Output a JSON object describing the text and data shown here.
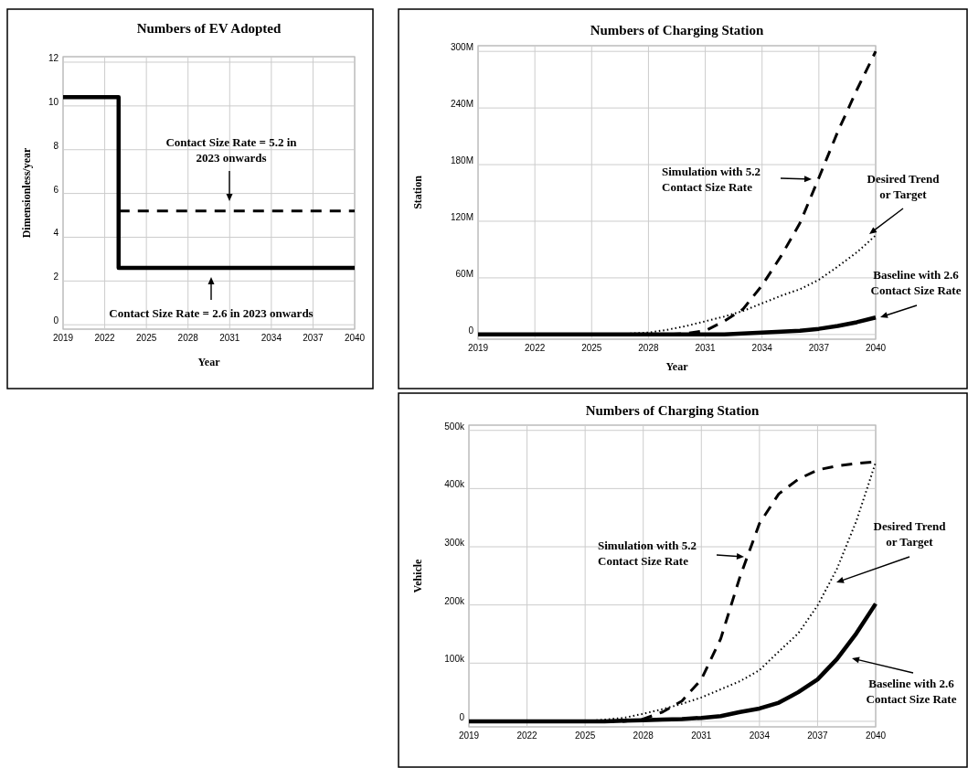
{
  "chart_data": [
    {
      "type": "line",
      "title": "Numbers of EV Adopted",
      "xlabel": "Year",
      "ylabel": "Dimensionless/year",
      "xlim": [
        2019,
        2040
      ],
      "ylim": [
        -0.2,
        12.25
      ],
      "xticks": [
        2019,
        2022,
        2025,
        2028,
        2031,
        2034,
        2037,
        2040
      ],
      "yticks": [
        0,
        2,
        4,
        6,
        8,
        10,
        12
      ],
      "grid": true,
      "series": [
        {
          "color": "#000000",
          "line_style": "solid",
          "x": [
            2019,
            2023,
            2023,
            2040
          ],
          "values": [
            10.4,
            10.4,
            2.6,
            2.6
          ]
        },
        {
          "color": "#000000",
          "line_style": "dashed",
          "x": [
            2023,
            2040
          ],
          "values": [
            5.2,
            5.2
          ]
        }
      ],
      "annotations": [
        "Contact Size Rate = 5.2 in\n2023 onwards",
        "Contact Size Rate = 2.6 in 2023 onwards"
      ]
    },
    {
      "type": "line",
      "title": "Numbers of Charging Station",
      "xlabel": "Year",
      "ylabel": "Station",
      "xlim": [
        2019,
        2040
      ],
      "ylim": [
        -5000000,
        306000000
      ],
      "xticks": [
        2019,
        2022,
        2025,
        2028,
        2031,
        2034,
        2037,
        2040
      ],
      "yticks": [
        0,
        {
          "value": 60000000,
          "label": "60M"
        },
        {
          "value": 120000000,
          "label": "120M"
        },
        {
          "value": 180000000,
          "label": "180M"
        },
        {
          "value": 240000000,
          "label": "240M"
        },
        {
          "value": 300000000,
          "label": "300M"
        }
      ],
      "grid": true,
      "series": [
        {
          "color": "#000000",
          "line_style": "dashed",
          "x": [
            2019,
            2025,
            2028,
            2029,
            2030,
            2031,
            2032,
            2033,
            2034,
            2035,
            2036,
            2037,
            2038,
            2039,
            2040
          ],
          "values": [
            0,
            0,
            0,
            0,
            1000000,
            4000000,
            14000000,
            27000000,
            52000000,
            83000000,
            118000000,
            166000000,
            215000000,
            259000000,
            300000000
          ]
        },
        {
          "color": "#000000",
          "line_style": "dotted",
          "x": [
            2019,
            2025,
            2026,
            2027,
            2028,
            2029,
            2030,
            2031,
            2032,
            2033,
            2034,
            2035,
            2036,
            2037,
            2038,
            2039,
            2040
          ],
          "values": [
            0,
            0,
            0,
            1000000,
            2000000,
            5000000,
            9000000,
            14000000,
            19000000,
            25000000,
            33000000,
            41000000,
            48000000,
            58000000,
            72000000,
            87000000,
            105000000
          ]
        },
        {
          "color": "#000000",
          "line_style": "solid",
          "x": [
            2019,
            2031,
            2032,
            2033,
            2034,
            2035,
            2036,
            2037,
            2038,
            2039,
            2040
          ],
          "values": [
            0,
            0,
            0,
            1000000,
            2000000,
            3000000,
            4000000,
            6000000,
            9000000,
            13000000,
            18000000
          ]
        }
      ],
      "annotations": [
        "Simulation with 5.2\nContact Size Rate",
        "Desired Trend\nor Target",
        "Baseline with 2.6\nContact Size Rate"
      ]
    },
    {
      "type": "line",
      "title": "Numbers of Charging Station",
      "ylabel": "Vehicle",
      "xlim": [
        2019,
        2040
      ],
      "ylim": [
        -9500,
        509000
      ],
      "xticks": [
        2019,
        2022,
        2025,
        2028,
        2031,
        2034,
        2037,
        2040
      ],
      "yticks": [
        0,
        {
          "value": 100000,
          "label": "100k"
        },
        {
          "value": 200000,
          "label": "200k"
        },
        {
          "value": 300000,
          "label": "300k"
        },
        {
          "value": 400000,
          "label": "400k"
        },
        {
          "value": 500000,
          "label": "500k"
        }
      ],
      "grid": true,
      "series": [
        {
          "color": "#000000",
          "line_style": "dashed",
          "x": [
            2019,
            2027,
            2028,
            2029,
            2030,
            2031,
            2032,
            2033,
            2034,
            2035,
            2036,
            2037,
            2038,
            2039,
            2040
          ],
          "values": [
            0,
            0,
            4000,
            16000,
            35000,
            72000,
            142000,
            249000,
            340000,
            391000,
            416000,
            432000,
            439000,
            443000,
            446000
          ]
        },
        {
          "color": "#000000",
          "line_style": "dotted",
          "x": [
            2019,
            2025,
            2026,
            2027,
            2028,
            2029,
            2030,
            2031,
            2032,
            2033,
            2034,
            2035,
            2036,
            2037,
            2038,
            2039,
            2040
          ],
          "values": [
            0,
            0,
            3000,
            6000,
            13000,
            21000,
            30000,
            41000,
            55000,
            69000,
            88000,
            120000,
            151000,
            199000,
            262000,
            344000,
            445000
          ]
        },
        {
          "color": "#000000",
          "line_style": "solid",
          "x": [
            2019,
            2026,
            2027,
            2028,
            2029,
            2030,
            2031,
            2032,
            2033,
            2034,
            2035,
            2036,
            2037,
            2038,
            2039,
            2040
          ],
          "values": [
            0,
            0,
            1000,
            2000,
            3000,
            4000,
            6000,
            9000,
            16000,
            22000,
            32000,
            50000,
            72000,
            107000,
            151000,
            202000
          ]
        }
      ],
      "annotations": [
        "Simulation with 5.2\nContact Size Rate",
        "Desired Trend\nor Target",
        "Baseline with 2.6\nContact Size Rate"
      ]
    }
  ]
}
